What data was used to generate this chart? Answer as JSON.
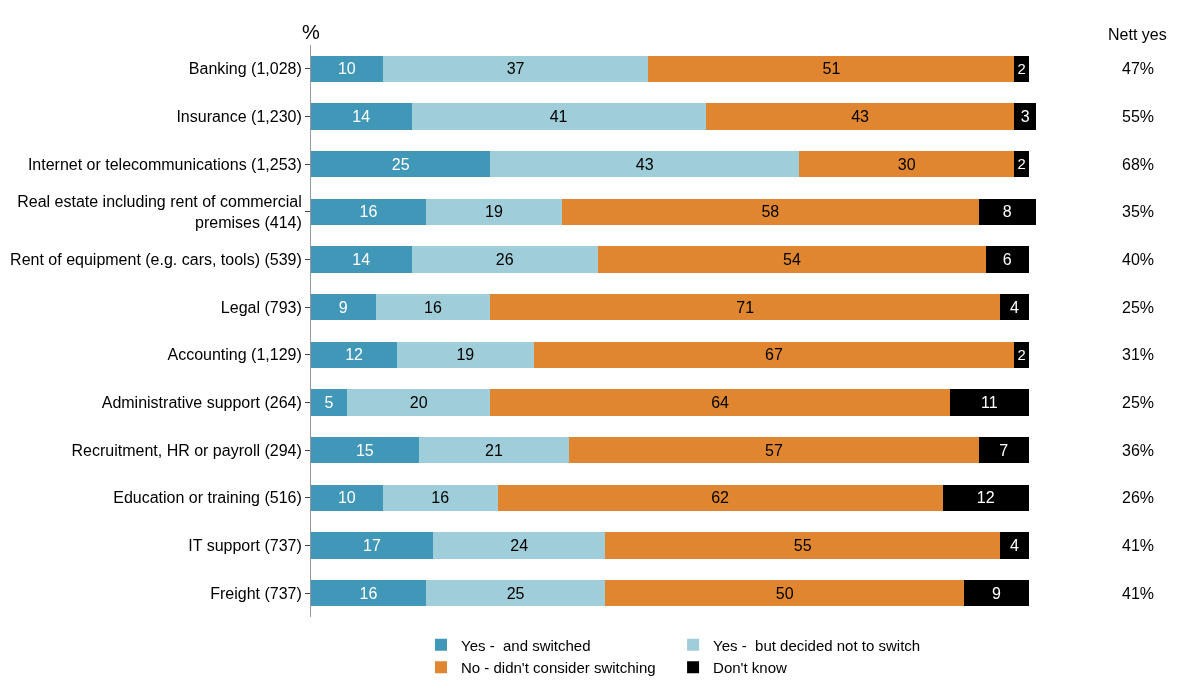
{
  "chart_data": {
    "type": "bar",
    "orientation": "horizontal",
    "stacked": true,
    "xlabel": "%",
    "xlim": [
      0,
      101
    ],
    "tick_labels": "y",
    "data_labels": true,
    "legend": "bottom",
    "categories": [
      "Banking (1,028)",
      "Insurance (1,230)",
      "Internet or telecommunications (1,253)",
      "Real estate including rent of commercial premises (414)",
      "Rent of equipment (e.g. cars, tools) (539)",
      "Legal (793)",
      "Accounting (1,129)",
      "Administrative support (264)",
      "Recruitment, HR or payroll (294)",
      "Education or training (516)",
      "IT support (737)",
      "Freight (737)"
    ],
    "series": [
      {
        "name": "Yes -  and switched",
        "color": "#4097b8",
        "values": [
          10,
          14,
          25,
          16,
          14,
          9,
          12,
          5,
          15,
          10,
          17,
          16
        ]
      },
      {
        "name": "Yes -  but decided not to switch",
        "color": "#9fcdd9",
        "values": [
          37,
          41,
          43,
          19,
          26,
          16,
          19,
          20,
          21,
          16,
          24,
          25
        ]
      },
      {
        "name": "No - didn't consider switching",
        "color": "#e08631",
        "values": [
          51,
          43,
          30,
          58,
          54,
          71,
          67,
          64,
          57,
          62,
          55,
          50
        ]
      },
      {
        "name": "Don't know",
        "color": "#000000",
        "values": [
          2,
          3,
          2,
          8,
          6,
          4,
          2,
          11,
          7,
          12,
          4,
          9
        ]
      }
    ],
    "annotations": [
      "Nett yes",
      "47%",
      "55%",
      "68%",
      "35%",
      "40%",
      "25%",
      "31%",
      "25%",
      "36%",
      "26%",
      "41%",
      "41%"
    ]
  }
}
